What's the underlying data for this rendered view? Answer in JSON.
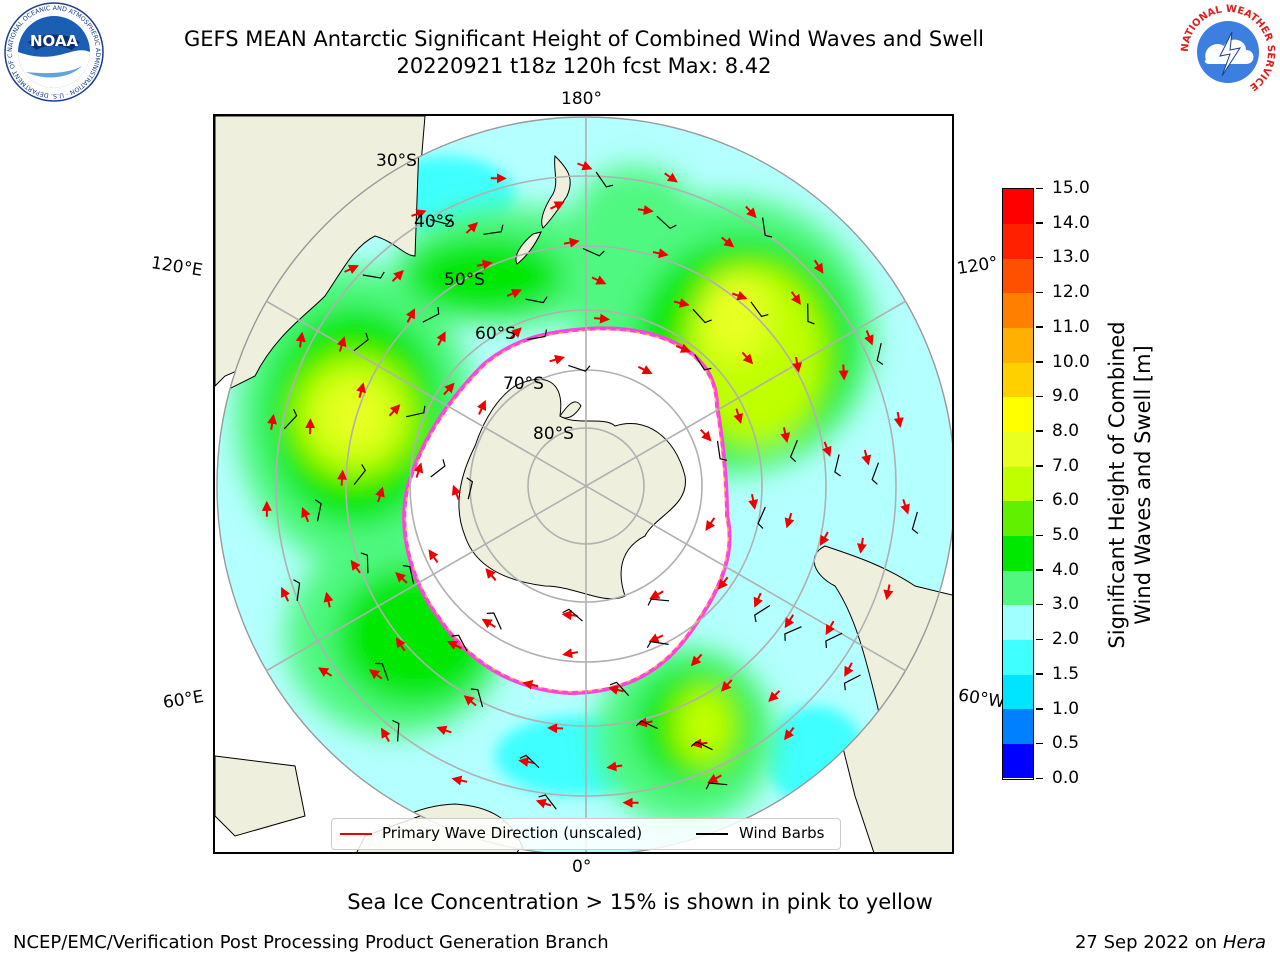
{
  "title": {
    "line1": "GEFS MEAN Antarctic Significant Height of Combined Wind Waves and Swell",
    "line2": "20220921 t18z 120h fcst   Max: 8.42"
  },
  "map": {
    "projection": "south polar stereographic",
    "longitude_labels": [
      "180°",
      "120°E",
      "120°",
      "60°E",
      "60°W",
      "0°"
    ],
    "latitude_labels": [
      "30°S",
      "40°S",
      "50°S",
      "60°S",
      "70°S",
      "80°S"
    ],
    "ocean_color": "#b4ffff",
    "land_color": "#efefde",
    "ice_edge_color": "#ff44dd"
  },
  "colorbar": {
    "title_line1": "Significant Height of Combined",
    "title_line2": "Wind Waves and Swell [m]",
    "tick_labels": [
      "0.0",
      "0.5",
      "1.0",
      "1.5",
      "2.0",
      "3.0",
      "4.0",
      "5.0",
      "6.0",
      "7.0",
      "8.0",
      "9.0",
      "10.0",
      "11.0",
      "12.0",
      "13.0",
      "14.0",
      "15.0"
    ],
    "colors": [
      "#0000ff",
      "#0080ff",
      "#00e5ff",
      "#40ffff",
      "#a0ffff",
      "#50f880",
      "#00e800",
      "#60f000",
      "#c0ff00",
      "#e8ff20",
      "#ffff00",
      "#ffd000",
      "#ffb000",
      "#ff8000",
      "#ff5000",
      "#ff2000",
      "#ff0000"
    ]
  },
  "legend": {
    "wave_direction": "Primary Wave Direction (unscaled)",
    "wind_barbs": "Wind Barbs",
    "wave_color": "#ff0000",
    "barb_color": "#000000"
  },
  "subtitle": "Sea Ice Concentration > 15% is shown in pink to yellow",
  "footer": {
    "left": "NCEP/EMC/Verification Post Processing Product Generation Branch",
    "right_date": "27 Sep 2022 on",
    "right_machine": "Hera"
  },
  "logos": {
    "noaa": "NOAA",
    "noaa_ring": "NATIONAL OCEANIC AND ATMOSPHERIC ADMINISTRATION · U.S. DEPARTMENT OF COMMERCE",
    "nws_ring": "NATIONAL WEATHER SERVICE"
  }
}
